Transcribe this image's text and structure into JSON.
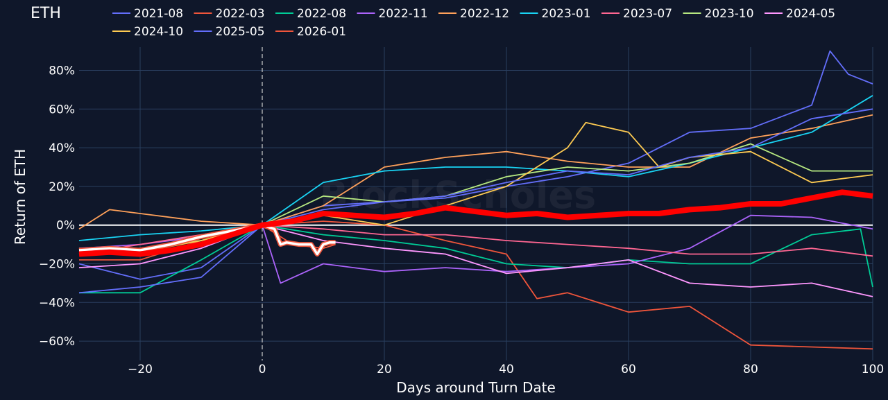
{
  "chart_data": {
    "type": "line",
    "title": "ETH",
    "xlabel": "Days around Turn Date",
    "ylabel": "Return of ETH",
    "xlim": [
      -30,
      100
    ],
    "ylim": [
      -70,
      92
    ],
    "xticks": [
      -20,
      0,
      20,
      40,
      60,
      80,
      100
    ],
    "xtick_labels": [
      "−20",
      "0",
      "20",
      "40",
      "60",
      "80",
      "100"
    ],
    "yticks": [
      -60,
      -40,
      -20,
      0,
      20,
      40,
      60,
      80
    ],
    "ytick_labels": [
      "−60%",
      "−40%",
      "−20%",
      "0%",
      "20%",
      "40%",
      "60%",
      "80%"
    ],
    "grid": true,
    "legend_position": "top",
    "watermark": "BlockScholes",
    "series": [
      {
        "name": "2021-08",
        "color": "#636efa",
        "x": [
          -30,
          -20,
          -10,
          0,
          10,
          20,
          30,
          40,
          50,
          60,
          70,
          80,
          90,
          93,
          96,
          100
        ],
        "y": [
          -20,
          -28,
          -22,
          0,
          10,
          12,
          14,
          20,
          25,
          32,
          48,
          50,
          62,
          90,
          78,
          73
        ]
      },
      {
        "name": "2022-03",
        "color": "#ef553b",
        "x": [
          -30,
          -20,
          -10,
          0,
          10,
          20,
          30,
          40,
          45,
          50,
          60,
          70,
          80,
          90,
          100
        ],
        "y": [
          -18,
          -18,
          -8,
          0,
          2,
          0,
          -8,
          -15,
          -38,
          -35,
          -45,
          -42,
          -62,
          -63,
          -64
        ]
      },
      {
        "name": "2022-08",
        "color": "#00cc96",
        "x": [
          -30,
          -20,
          -10,
          0,
          10,
          20,
          30,
          40,
          50,
          60,
          70,
          80,
          90,
          98,
          100
        ],
        "y": [
          -35,
          -35,
          -18,
          0,
          -5,
          -8,
          -12,
          -20,
          -22,
          -18,
          -20,
          -20,
          -5,
          -2,
          -32
        ]
      },
      {
        "name": "2022-11",
        "color": "#ab63fa",
        "x": [
          -30,
          -20,
          -10,
          0,
          3,
          10,
          20,
          30,
          40,
          50,
          60,
          70,
          80,
          90,
          100
        ],
        "y": [
          -12,
          -10,
          -6,
          0,
          -30,
          -20,
          -24,
          -22,
          -24,
          -22,
          -20,
          -12,
          5,
          4,
          -2
        ]
      },
      {
        "name": "2022-12",
        "color": "#ffa15a",
        "x": [
          -30,
          -25,
          -20,
          -10,
          0,
          10,
          20,
          30,
          40,
          50,
          60,
          70,
          80,
          90,
          100
        ],
        "y": [
          -2,
          8,
          6,
          2,
          0,
          10,
          30,
          35,
          38,
          33,
          30,
          30,
          45,
          50,
          57
        ]
      },
      {
        "name": "2023-01",
        "color": "#19d3f3",
        "x": [
          -30,
          -20,
          -10,
          0,
          10,
          20,
          30,
          40,
          50,
          60,
          70,
          80,
          90,
          100
        ],
        "y": [
          -8,
          -5,
          -3,
          0,
          22,
          28,
          30,
          30,
          28,
          25,
          32,
          40,
          48,
          67
        ]
      },
      {
        "name": "2023-07",
        "color": "#ff6692",
        "x": [
          -30,
          -20,
          -10,
          0,
          10,
          20,
          30,
          40,
          50,
          60,
          70,
          80,
          90,
          100
        ],
        "y": [
          -15,
          -10,
          -5,
          0,
          -2,
          -5,
          -5,
          -8,
          -10,
          -12,
          -15,
          -15,
          -12,
          -16
        ]
      },
      {
        "name": "2023-10",
        "color": "#b6e880",
        "x": [
          -30,
          -20,
          -10,
          0,
          10,
          20,
          30,
          40,
          50,
          60,
          70,
          80,
          90,
          100
        ],
        "y": [
          -15,
          -12,
          -8,
          0,
          15,
          12,
          15,
          25,
          30,
          28,
          32,
          42,
          28,
          28
        ]
      },
      {
        "name": "2024-05",
        "color": "#ff97ff",
        "x": [
          -30,
          -20,
          -10,
          0,
          10,
          20,
          30,
          40,
          50,
          60,
          70,
          80,
          90,
          100
        ],
        "y": [
          -22,
          -20,
          -12,
          0,
          -8,
          -12,
          -15,
          -25,
          -22,
          -18,
          -30,
          -32,
          -30,
          -37
        ]
      },
      {
        "name": "2024-10",
        "color": "#fecb52",
        "x": [
          -30,
          -20,
          -10,
          0,
          10,
          20,
          30,
          40,
          50,
          53,
          60,
          65,
          70,
          80,
          90,
          100
        ],
        "y": [
          -12,
          -14,
          -8,
          0,
          5,
          0,
          10,
          20,
          40,
          53,
          48,
          30,
          35,
          38,
          22,
          26
        ]
      },
      {
        "name": "2025-05",
        "color": "#636efa",
        "x": [
          -30,
          -20,
          -10,
          0,
          10,
          20,
          30,
          40,
          50,
          60,
          70,
          80,
          90,
          100
        ],
        "y": [
          -35,
          -32,
          -27,
          0,
          8,
          12,
          15,
          22,
          28,
          26,
          35,
          40,
          55,
          60
        ]
      },
      {
        "name": "2026-01",
        "color": "#ef553b",
        "x": [
          -30,
          -20,
          -10,
          0,
          5,
          10,
          12
        ],
        "y": [
          -15,
          -15,
          -10,
          0,
          -10,
          -12,
          -10
        ]
      }
    ],
    "mean_series": {
      "color": "#ff0000",
      "x": [
        -30,
        -25,
        -20,
        -15,
        -10,
        -5,
        0,
        5,
        10,
        15,
        20,
        25,
        30,
        35,
        40,
        45,
        50,
        55,
        60,
        65,
        70,
        75,
        80,
        85,
        90,
        95,
        100
      ],
      "y": [
        -15,
        -14,
        -15,
        -13,
        -10,
        -5,
        0,
        2,
        6,
        5,
        4,
        6,
        9,
        7,
        5,
        6,
        4,
        5,
        6,
        6,
        8,
        9,
        11,
        11,
        14,
        17,
        15
      ]
    },
    "highlight_series": {
      "color": "#ffffff",
      "x": [
        -30,
        -25,
        -20,
        -15,
        -10,
        -5,
        0,
        2,
        3,
        4,
        6,
        8,
        9,
        10,
        11,
        12
      ],
      "y": [
        -13,
        -12,
        -13,
        -10,
        -6,
        -3,
        0,
        -2,
        -10,
        -9,
        -10,
        -10,
        -15,
        -10,
        -9,
        -9
      ]
    }
  }
}
